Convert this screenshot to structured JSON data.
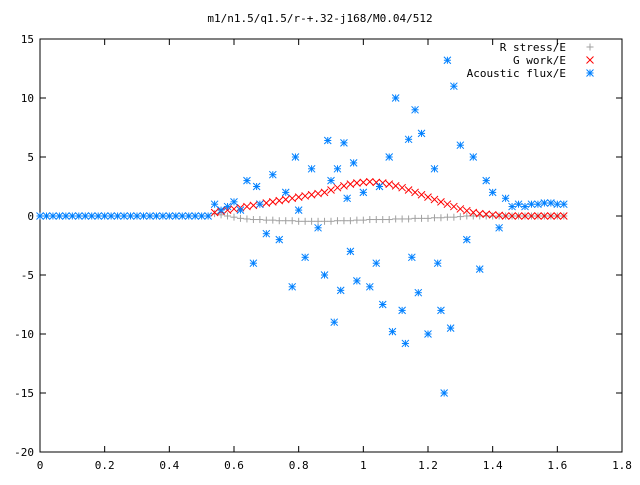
{
  "chart_data": {
    "type": "scatter",
    "title": "m1/n1.5/q1.5/r-+.32-j168/M0.04/512",
    "xlabel": "",
    "ylabel": "",
    "xlim": [
      0,
      1.8
    ],
    "ylim": [
      -20,
      15
    ],
    "xticks": [
      "0",
      "0.2",
      "0.4",
      "0.6",
      "0.8",
      "1",
      "1.2",
      "1.4",
      "1.6",
      "1.8"
    ],
    "yticks": [
      "15",
      "10",
      "5",
      "0",
      "-5",
      "-10",
      "-15",
      "-20"
    ],
    "grid": false,
    "legend_position": "top-right",
    "series": [
      {
        "name": "R stress/E",
        "marker": "plus",
        "color": "#a0a0a0",
        "x": [
          0.54,
          0.56,
          0.58,
          0.6,
          0.62,
          0.64,
          0.66,
          0.68,
          0.7,
          0.72,
          0.74,
          0.76,
          0.78,
          0.8,
          0.82,
          0.84,
          0.86,
          0.88,
          0.9,
          0.92,
          0.94,
          0.96,
          0.98,
          1.0,
          1.02,
          1.04,
          1.06,
          1.08,
          1.1,
          1.12,
          1.14,
          1.16,
          1.18,
          1.2,
          1.22,
          1.24,
          1.26,
          1.28,
          1.3,
          1.32,
          1.34,
          1.36,
          1.38,
          1.4,
          1.42,
          1.44,
          1.46,
          1.48,
          1.5,
          1.52,
          1.54,
          1.56,
          1.58,
          1.6,
          1.62
        ],
        "y": [
          0.2,
          0.1,
          0.0,
          -0.1,
          -0.2,
          -0.25,
          -0.3,
          -0.3,
          -0.35,
          -0.35,
          -0.4,
          -0.4,
          -0.4,
          -0.45,
          -0.45,
          -0.45,
          -0.45,
          -0.45,
          -0.45,
          -0.4,
          -0.4,
          -0.4,
          -0.35,
          -0.35,
          -0.3,
          -0.3,
          -0.3,
          -0.3,
          -0.25,
          -0.25,
          -0.25,
          -0.2,
          -0.2,
          -0.2,
          -0.15,
          -0.15,
          -0.1,
          -0.1,
          -0.05,
          0.0,
          0.0,
          0.0,
          0.0,
          0.0,
          0.0,
          0.0,
          0.0,
          0.0,
          0.0,
          0.0,
          0.0,
          0.0,
          0.0,
          0.0,
          0.0
        ]
      },
      {
        "name": "G work/E",
        "marker": "cross",
        "color": "#ff0000",
        "x": [
          0.54,
          0.56,
          0.58,
          0.6,
          0.62,
          0.64,
          0.66,
          0.68,
          0.7,
          0.72,
          0.74,
          0.76,
          0.78,
          0.8,
          0.82,
          0.84,
          0.86,
          0.88,
          0.9,
          0.92,
          0.94,
          0.96,
          0.98,
          1.0,
          1.02,
          1.04,
          1.06,
          1.08,
          1.1,
          1.12,
          1.14,
          1.16,
          1.18,
          1.2,
          1.22,
          1.24,
          1.26,
          1.28,
          1.3,
          1.32,
          1.34,
          1.36,
          1.38,
          1.4,
          1.42,
          1.44,
          1.46,
          1.48,
          1.5,
          1.52,
          1.54,
          1.56,
          1.58,
          1.6,
          1.62
        ],
        "y": [
          0.3,
          0.4,
          0.5,
          0.6,
          0.7,
          0.8,
          0.9,
          1.0,
          1.1,
          1.2,
          1.3,
          1.4,
          1.5,
          1.6,
          1.7,
          1.8,
          1.9,
          2.0,
          2.2,
          2.4,
          2.55,
          2.7,
          2.8,
          2.85,
          2.9,
          2.85,
          2.8,
          2.7,
          2.55,
          2.4,
          2.2,
          2.0,
          1.8,
          1.6,
          1.4,
          1.2,
          1.0,
          0.8,
          0.6,
          0.45,
          0.3,
          0.2,
          0.15,
          0.1,
          0.05,
          0.0,
          0.0,
          0.0,
          0.0,
          0.0,
          0.0,
          0.0,
          0.0,
          0.0,
          0.0
        ]
      },
      {
        "name": "Acoustic flux/E",
        "marker": "star",
        "color": "#0080ff",
        "x": [
          0.0,
          0.02,
          0.04,
          0.06,
          0.08,
          0.1,
          0.12,
          0.14,
          0.16,
          0.18,
          0.2,
          0.22,
          0.24,
          0.26,
          0.28,
          0.3,
          0.32,
          0.34,
          0.36,
          0.38,
          0.4,
          0.42,
          0.44,
          0.46,
          0.48,
          0.5,
          0.52,
          0.54,
          0.56,
          0.58,
          0.6,
          0.62,
          0.64,
          0.66,
          0.67,
          0.68,
          0.7,
          0.72,
          0.74,
          0.76,
          0.78,
          0.79,
          0.8,
          0.82,
          0.84,
          0.86,
          0.88,
          0.89,
          0.9,
          0.91,
          0.92,
          0.93,
          0.94,
          0.95,
          0.96,
          0.97,
          0.98,
          1.0,
          1.02,
          1.04,
          1.05,
          1.06,
          1.08,
          1.09,
          1.1,
          1.12,
          1.13,
          1.14,
          1.15,
          1.16,
          1.17,
          1.18,
          1.2,
          1.22,
          1.23,
          1.24,
          1.25,
          1.26,
          1.27,
          1.28,
          1.3,
          1.32,
          1.34,
          1.36,
          1.38,
          1.4,
          1.42,
          1.44,
          1.46,
          1.48,
          1.5,
          1.52,
          1.54,
          1.56,
          1.58,
          1.6,
          1.62
        ],
        "y": [
          0.0,
          0.0,
          0.0,
          0.0,
          0.0,
          0.0,
          0.0,
          0.0,
          0.0,
          0.0,
          0.0,
          0.0,
          0.0,
          0.0,
          0.0,
          0.0,
          0.0,
          0.0,
          0.0,
          0.0,
          0.0,
          0.0,
          0.0,
          0.0,
          0.0,
          0.0,
          0.0,
          1.0,
          0.5,
          0.8,
          1.2,
          0.5,
          3.0,
          -4.0,
          2.5,
          1.0,
          -1.5,
          3.5,
          -2.0,
          2.0,
          -6.0,
          5.0,
          0.5,
          -3.5,
          4.0,
          -1.0,
          -5.0,
          6.4,
          3.0,
          -9.0,
          4.0,
          -6.3,
          6.2,
          1.5,
          -3.0,
          4.5,
          -5.5,
          2.0,
          -6.0,
          -4.0,
          2.5,
          -7.5,
          5.0,
          -9.8,
          10.0,
          -8.0,
          -10.8,
          6.5,
          -3.5,
          9.0,
          -6.5,
          7.0,
          -10.0,
          4.0,
          -4.0,
          -8.0,
          -15.0,
          13.2,
          -9.5,
          11.0,
          6.0,
          -2.0,
          5.0,
          -4.5,
          3.0,
          2.0,
          -1.0,
          1.5,
          0.8,
          1.0,
          0.8,
          1.0,
          1.0,
          1.1,
          1.1,
          1.0,
          1.0
        ]
      }
    ]
  }
}
